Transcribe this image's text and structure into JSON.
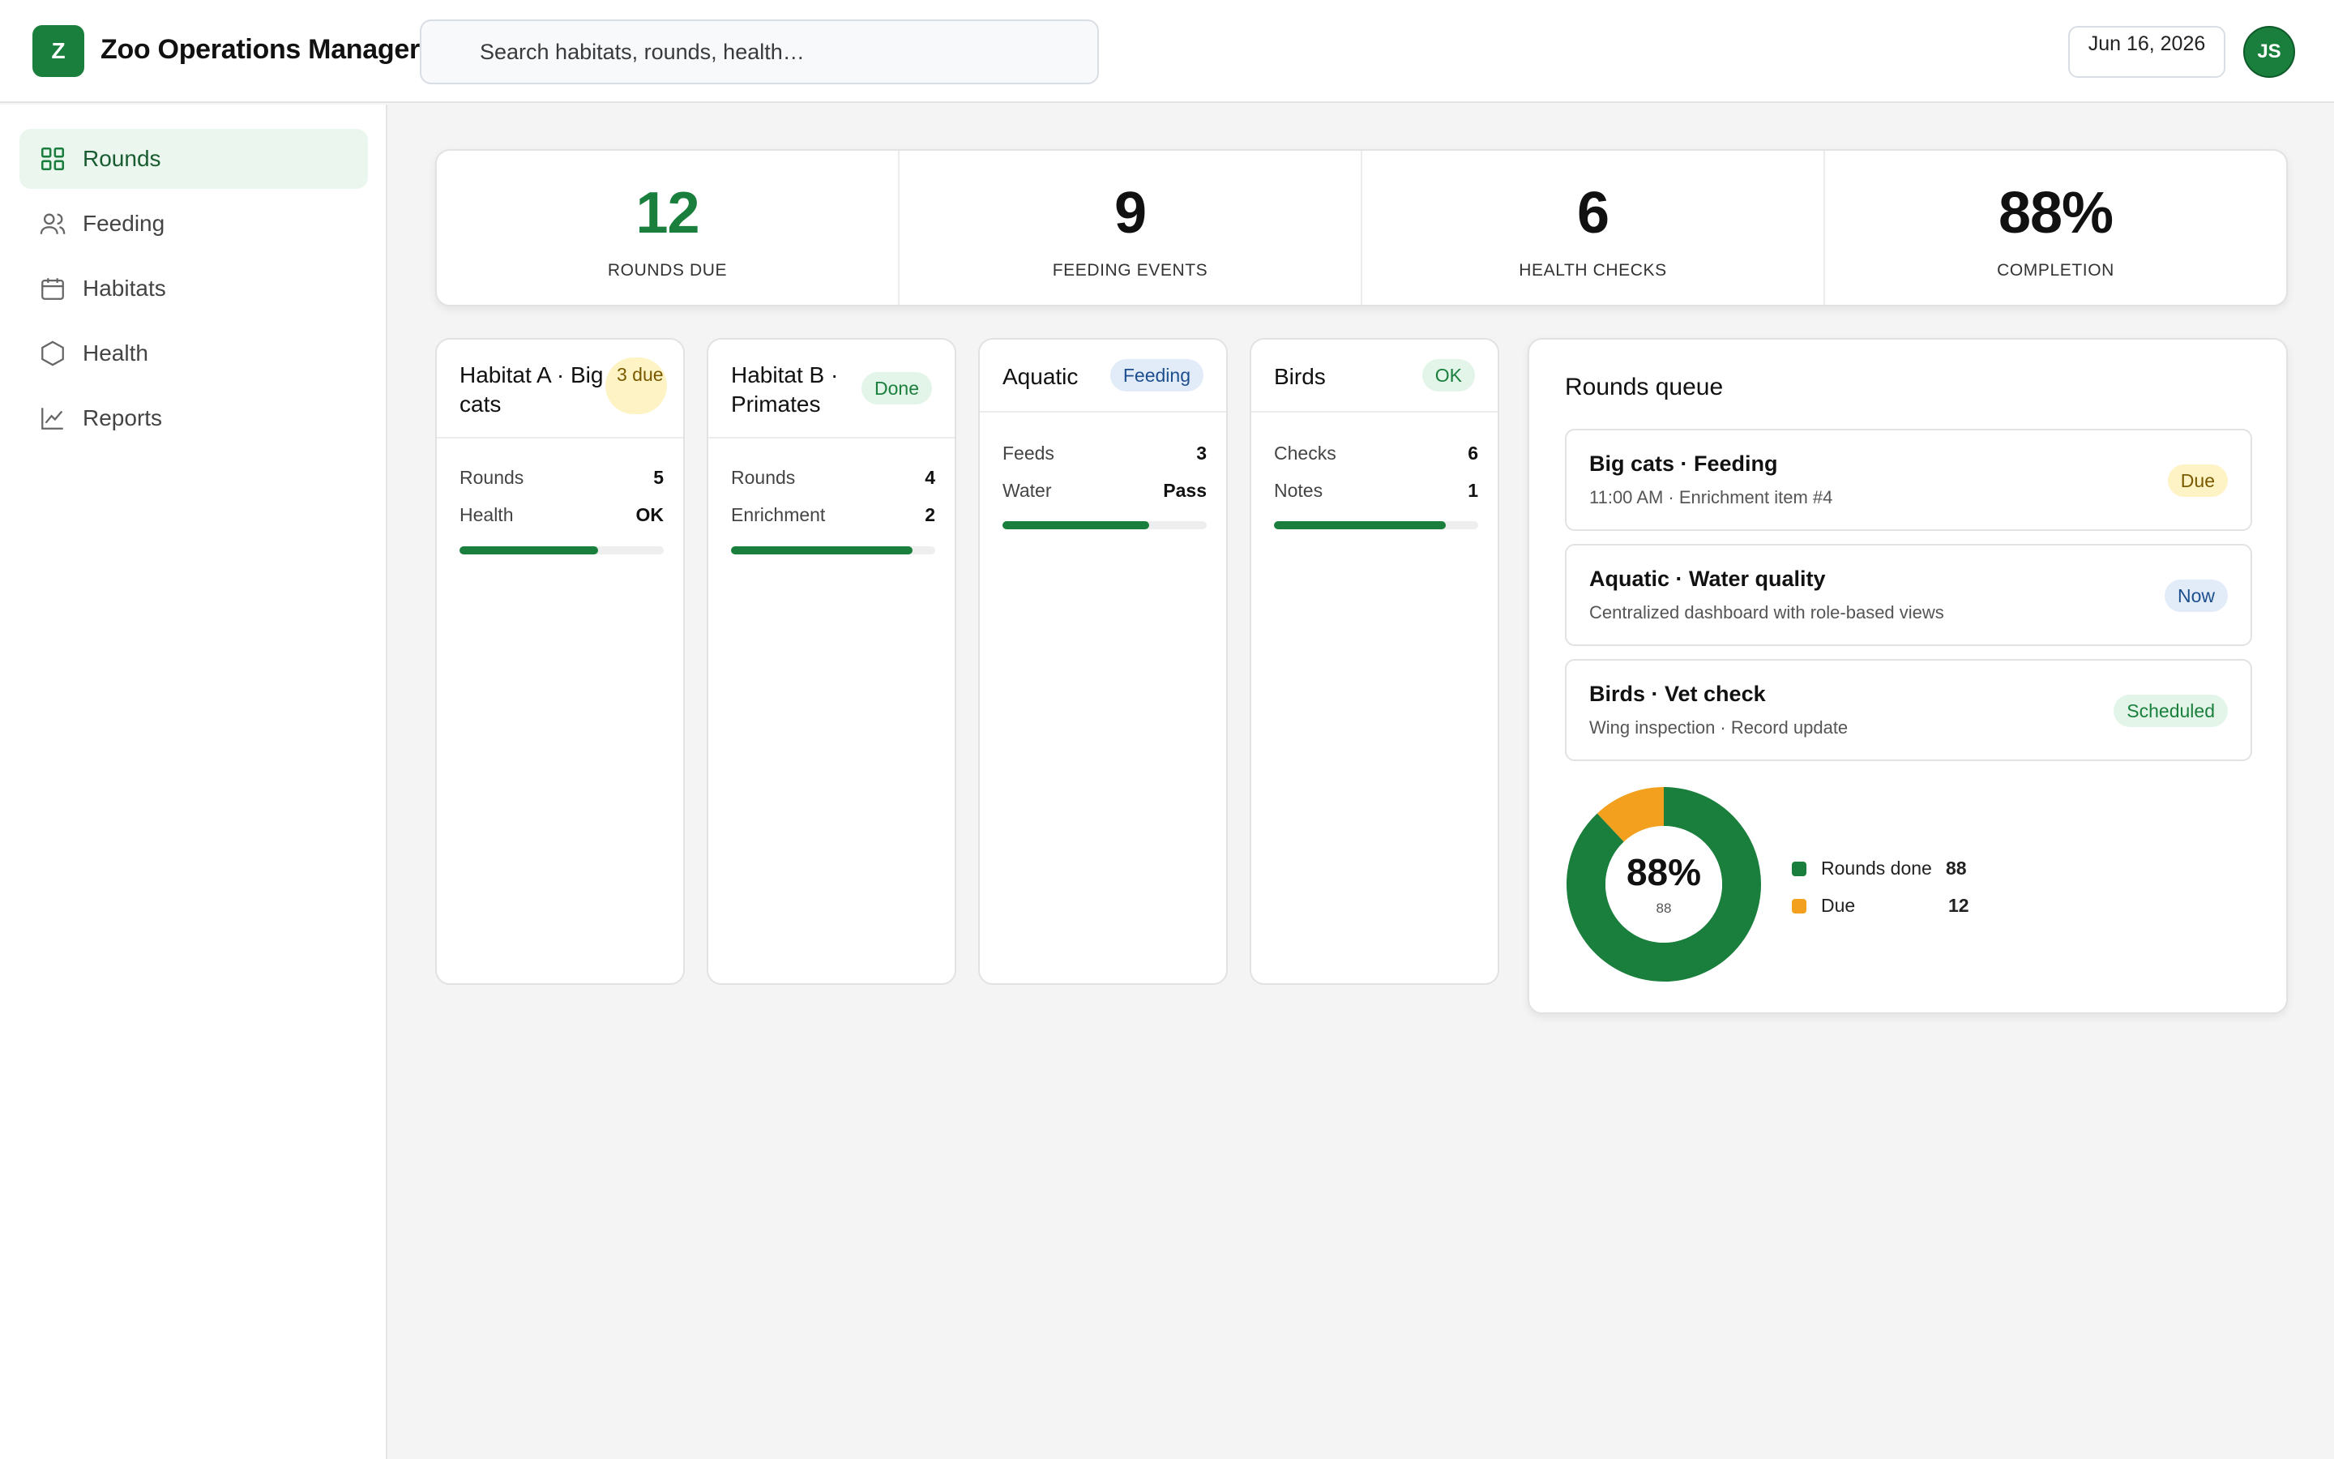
{
  "app": {
    "logo_letter": "Z",
    "title": "Zoo Operations Manager"
  },
  "search": {
    "placeholder": "Search habitats, rounds, health…"
  },
  "header": {
    "date": "Jun 16, 2026",
    "avatar_initials": "JS"
  },
  "sidebar": {
    "items": [
      {
        "label": "Rounds",
        "icon": "grid-icon",
        "active": true
      },
      {
        "label": "Feeding",
        "icon": "users-icon",
        "active": false
      },
      {
        "label": "Habitats",
        "icon": "calendar-icon",
        "active": false
      },
      {
        "label": "Health",
        "icon": "hexagon-icon",
        "active": false
      },
      {
        "label": "Reports",
        "icon": "line-chart-icon",
        "active": false
      }
    ]
  },
  "stats": [
    {
      "value": "12",
      "label": "ROUNDS DUE"
    },
    {
      "value": "9",
      "label": "FEEDING EVENTS"
    },
    {
      "value": "6",
      "label": "HEALTH CHECKS"
    },
    {
      "value": "88%",
      "label": "COMPLETION"
    }
  ],
  "habitats": [
    {
      "title": "Habitat A · Big cats",
      "badge": "3 due",
      "rows": [
        {
          "label": "Rounds",
          "value": "5"
        },
        {
          "label": "Health",
          "value": "OK"
        }
      ],
      "progress": 0.68
    },
    {
      "title": "Habitat B · Primates",
      "badge": "Done",
      "rows": [
        {
          "label": "Rounds",
          "value": "4"
        },
        {
          "label": "Enrichment",
          "value": "2"
        }
      ],
      "progress": 0.89
    },
    {
      "title": "Aquatic",
      "badge": "Feeding",
      "rows": [
        {
          "label": "Feeds",
          "value": "3"
        },
        {
          "label": "Water",
          "value": "Pass"
        }
      ],
      "progress": 0.72
    },
    {
      "title": "Birds",
      "badge": "OK",
      "rows": [
        {
          "label": "Checks",
          "value": "6"
        },
        {
          "label": "Notes",
          "value": "1"
        }
      ],
      "progress": 0.84
    }
  ],
  "queue": {
    "title": "Rounds queue",
    "items": [
      {
        "title": "Big cats · Feeding",
        "subtitle": "11:00 AM · Enrichment item #4",
        "badge": "Due"
      },
      {
        "title": "Aquatic · Water quality",
        "subtitle": "Centralized dashboard with role-based views",
        "badge": "Now"
      },
      {
        "title": "Birds · Vet check",
        "subtitle": "Wing inspection · Record update",
        "badge": "Scheduled"
      }
    ],
    "donut": {
      "center_value": "88%",
      "center_sub": "88",
      "segments": [
        {
          "name": "Rounds done",
          "value": 88,
          "color": "#1a7f3c"
        },
        {
          "name": "Due",
          "value": 12,
          "color": "#f2a01e"
        }
      ]
    }
  },
  "colors": {
    "accent": "#1a7f3c",
    "warning": "#f2a01e"
  }
}
